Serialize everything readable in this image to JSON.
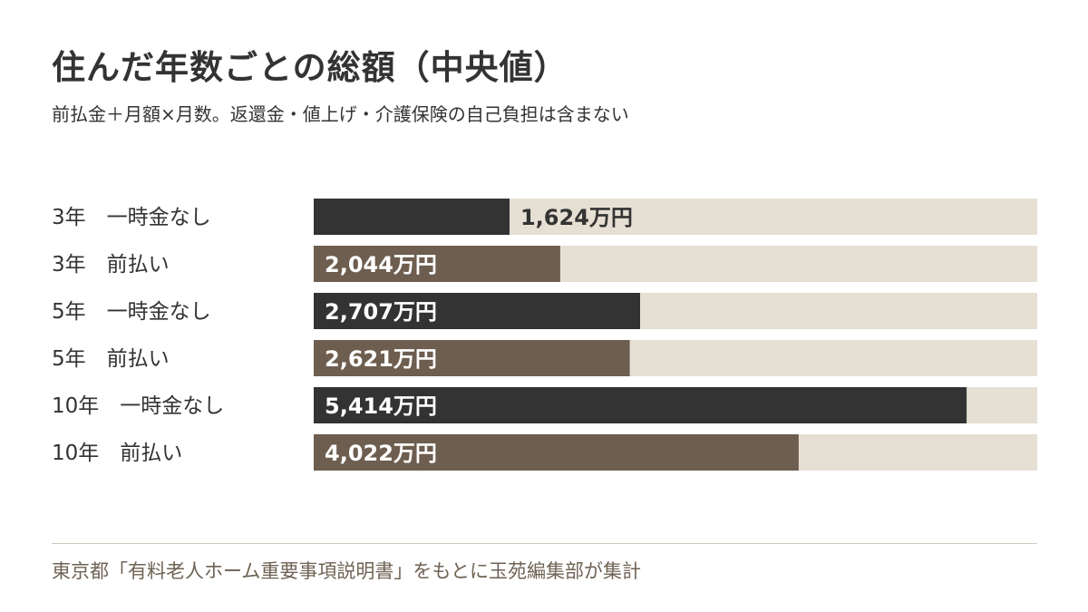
{
  "title": "住んだ年数ごとの総額（中央値）",
  "subtitle": "前払金＋月額×月数。返還金・値上げ・介護保険の自己負担は含まない",
  "source": "東京都「有料老人ホーム重要事項説明書」をもとに玉苑編集部が集計",
  "colors": {
    "no_lump_sum": "#333333",
    "prepaid": "#6e5e4f",
    "track": "#e6dfd4",
    "label_text": "#333333",
    "value_text_on_bar": "#ffffff"
  },
  "chart_data": {
    "type": "bar",
    "orientation": "horizontal",
    "title": "住んだ年数ごとの総額（中央値）",
    "subtitle": "前払金＋月額×月数。返還金・値上げ・介護保険の自己負担は含まない",
    "unit": "万円",
    "xlim": [
      0,
      6000
    ],
    "grid": false,
    "categories": [
      "3年　一時金なし",
      "3年　前払い",
      "5年　一時金なし",
      "5年　前払い",
      "10年　一時金なし",
      "10年　前払い"
    ],
    "values": [
      1624,
      2044,
      2707,
      2621,
      5414,
      4022
    ],
    "labels": [
      "1,624万円",
      "2,044万円",
      "2,707万円",
      "2,621万円",
      "5,414万円",
      "4,022万円"
    ],
    "series_type": [
      "no_lump_sum",
      "prepaid",
      "no_lump_sum",
      "prepaid",
      "no_lump_sum",
      "prepaid"
    ]
  }
}
